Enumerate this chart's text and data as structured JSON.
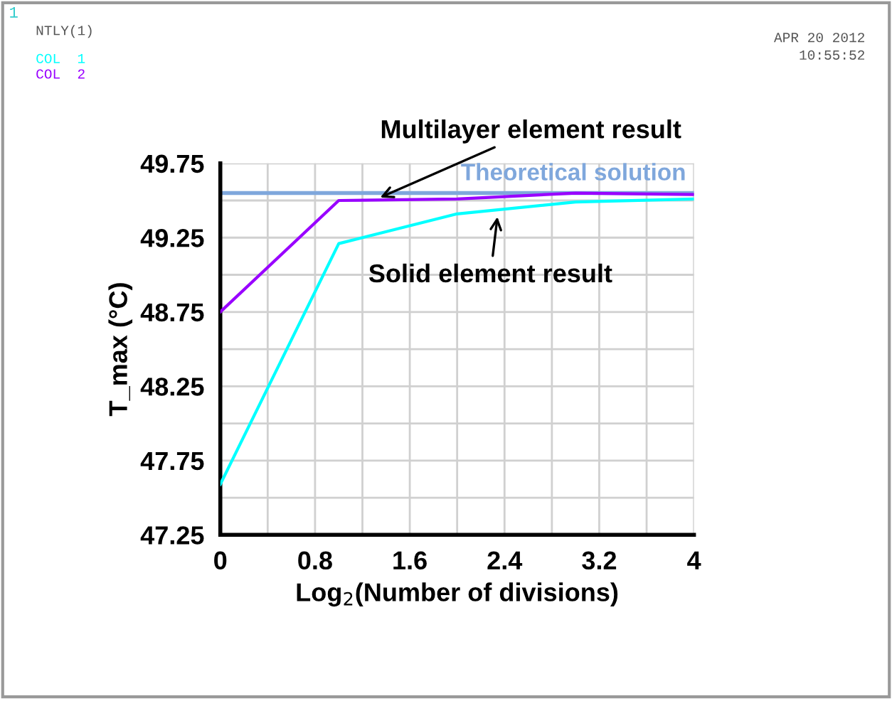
{
  "chart_data": {
    "type": "line",
    "xlabel": "Log$_{2}$(Number of divisions)",
    "ylabel": "T_max (°C)",
    "x": [
      0,
      1,
      2,
      3,
      4
    ],
    "series": [
      {
        "name": "COL  1",
        "color": "#00ffff",
        "values": [
          47.59,
          49.21,
          49.41,
          49.49,
          49.51
        ]
      },
      {
        "name": "COL  2",
        "color": "#9900ff",
        "values": [
          48.75,
          49.5,
          49.51,
          49.55,
          49.54
        ]
      }
    ],
    "xlim": [
      0,
      4
    ],
    "xticks": [
      0,
      {
        "value": 0.4,
        "label": null
      },
      0.8,
      {
        "value": 1.2,
        "label": null
      },
      1.6,
      {
        "value": 2.0,
        "label": null
      },
      2.4,
      {
        "value": 2.8,
        "label": null
      },
      3.2,
      {
        "value": 3.6,
        "label": null
      },
      4
    ],
    "ylim": [
      47.25,
      49.75
    ],
    "yticks": [
      47.25,
      {
        "value": 47.5,
        "label": null
      },
      47.75,
      {
        "value": 48.0,
        "label": null
      },
      48.25,
      {
        "value": 48.5,
        "label": null
      },
      48.75,
      {
        "value": 49.0,
        "label": null
      },
      49.25,
      {
        "value": 49.5,
        "label": null
      },
      49.75
    ],
    "ref_lines": [
      {
        "axis": "y",
        "value": 49.55,
        "label": "Theoretical solution",
        "color": "#7fa7dc"
      }
    ],
    "annotations": [
      {
        "text": "Multilayer element result",
        "x": 1.35,
        "y": 49.52
      },
      {
        "text": "Solid element result",
        "x": 2.34,
        "y": 49.39
      },
      "1",
      "NTLY(1)",
      "APR 20 2012",
      "10:55:52"
    ],
    "grid": true,
    "legend": "top left",
    "marker": "none",
    "line_style": "solid"
  }
}
